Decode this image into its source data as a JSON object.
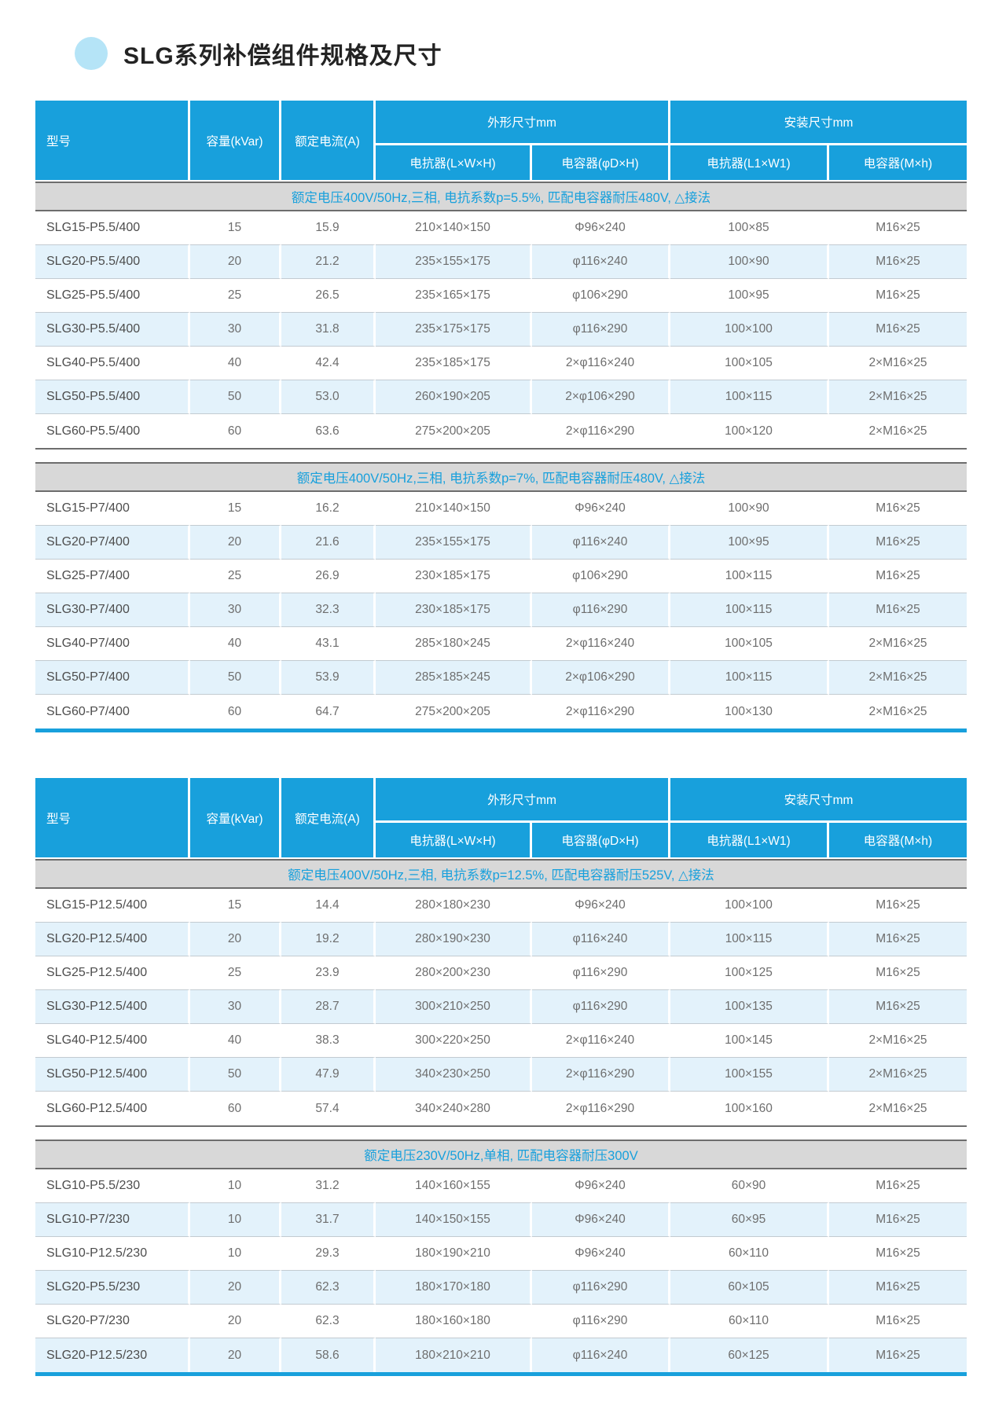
{
  "page": {
    "title": "SLG系列补偿组件规格及尺寸"
  },
  "colors": {
    "accent_blue": "#18a0dc",
    "band_bg": "#d8d8d8",
    "band_text": "#18a0dc",
    "row_alt_bg": "#e3f2fb",
    "title_bullet": "#b5e4f7"
  },
  "columns": {
    "model": "型号",
    "capacity": "容量(kVar)",
    "current": "额定电流(A)",
    "outline_group": "外形尺寸mm",
    "mount_group": "安装尺寸mm",
    "outline_reactor": "电抗器(L×W×H)",
    "outline_capacitor": "电容器(φD×H)",
    "mount_reactor": "电抗器(L1×W1)",
    "mount_capacitor": "电容器(M×h)"
  },
  "tables": [
    {
      "sections": [
        {
          "band": "额定电压400V/50Hz,三相, 电抗系数p=5.5%, 匹配电容器耐压480V, △接法",
          "rows": [
            [
              "SLG15-P5.5/400",
              "15",
              "15.9",
              "210×140×150",
              "Φ96×240",
              "100×85",
              "M16×25"
            ],
            [
              "SLG20-P5.5/400",
              "20",
              "21.2",
              "235×155×175",
              "φ116×240",
              "100×90",
              "M16×25"
            ],
            [
              "SLG25-P5.5/400",
              "25",
              "26.5",
              "235×165×175",
              "φ106×290",
              "100×95",
              "M16×25"
            ],
            [
              "SLG30-P5.5/400",
              "30",
              "31.8",
              "235×175×175",
              "φ116×290",
              "100×100",
              "M16×25"
            ],
            [
              "SLG40-P5.5/400",
              "40",
              "42.4",
              "235×185×175",
              "2×φ116×240",
              "100×105",
              "2×M16×25"
            ],
            [
              "SLG50-P5.5/400",
              "50",
              "53.0",
              "260×190×205",
              "2×φ106×290",
              "100×115",
              "2×M16×25"
            ],
            [
              "SLG60-P5.5/400",
              "60",
              "63.6",
              "275×200×205",
              "2×φ116×290",
              "100×120",
              "2×M16×25"
            ]
          ]
        },
        {
          "band": "额定电压400V/50Hz,三相, 电抗系数p=7%, 匹配电容器耐压480V, △接法",
          "rows": [
            [
              "SLG15-P7/400",
              "15",
              "16.2",
              "210×140×150",
              "Φ96×240",
              "100×90",
              "M16×25"
            ],
            [
              "SLG20-P7/400",
              "20",
              "21.6",
              "235×155×175",
              "φ116×240",
              "100×95",
              "M16×25"
            ],
            [
              "SLG25-P7/400",
              "25",
              "26.9",
              "230×185×175",
              "φ106×290",
              "100×115",
              "M16×25"
            ],
            [
              "SLG30-P7/400",
              "30",
              "32.3",
              "230×185×175",
              "φ116×290",
              "100×115",
              "M16×25"
            ],
            [
              "SLG40-P7/400",
              "40",
              "43.1",
              "285×180×245",
              "2×φ116×240",
              "100×105",
              "2×M16×25"
            ],
            [
              "SLG50-P7/400",
              "50",
              "53.9",
              "285×185×245",
              "2×φ106×290",
              "100×115",
              "2×M16×25"
            ],
            [
              "SLG60-P7/400",
              "60",
              "64.7",
              "275×200×205",
              "2×φ116×290",
              "100×130",
              "2×M16×25"
            ]
          ]
        }
      ]
    },
    {
      "sections": [
        {
          "band": "额定电压400V/50Hz,三相, 电抗系数p=12.5%, 匹配电容器耐压525V, △接法",
          "rows": [
            [
              "SLG15-P12.5/400",
              "15",
              "14.4",
              "280×180×230",
              "Φ96×240",
              "100×100",
              "M16×25"
            ],
            [
              "SLG20-P12.5/400",
              "20",
              "19.2",
              "280×190×230",
              "φ116×240",
              "100×115",
              "M16×25"
            ],
            [
              "SLG25-P12.5/400",
              "25",
              "23.9",
              "280×200×230",
              "φ116×290",
              "100×125",
              "M16×25"
            ],
            [
              "SLG30-P12.5/400",
              "30",
              "28.7",
              "300×210×250",
              "φ116×290",
              "100×135",
              "M16×25"
            ],
            [
              "SLG40-P12.5/400",
              "40",
              "38.3",
              "300×220×250",
              "2×φ116×240",
              "100×145",
              "2×M16×25"
            ],
            [
              "SLG50-P12.5/400",
              "50",
              "47.9",
              "340×230×250",
              "2×φ116×290",
              "100×155",
              "2×M16×25"
            ],
            [
              "SLG60-P12.5/400",
              "60",
              "57.4",
              "340×240×280",
              "2×φ116×290",
              "100×160",
              "2×M16×25"
            ]
          ]
        },
        {
          "band": "额定电压230V/50Hz,单相, 匹配电容器耐压300V",
          "rows": [
            [
              "SLG10-P5.5/230",
              "10",
              "31.2",
              "140×160×155",
              "Φ96×240",
              "60×90",
              "M16×25"
            ],
            [
              "SLG10-P7/230",
              "10",
              "31.7",
              "140×150×155",
              "Φ96×240",
              "60×95",
              "M16×25"
            ],
            [
              "SLG10-P12.5/230",
              "10",
              "29.3",
              "180×190×210",
              "Φ96×240",
              "60×110",
              "M16×25"
            ],
            [
              "SLG20-P5.5/230",
              "20",
              "62.3",
              "180×170×180",
              "φ116×290",
              "60×105",
              "M16×25"
            ],
            [
              "SLG20-P7/230",
              "20",
              "62.3",
              "180×160×180",
              "φ116×290",
              "60×110",
              "M16×25"
            ],
            [
              "SLG20-P12.5/230",
              "20",
              "58.6",
              "180×210×210",
              "φ116×240",
              "60×125",
              "M16×25"
            ]
          ]
        }
      ]
    }
  ]
}
